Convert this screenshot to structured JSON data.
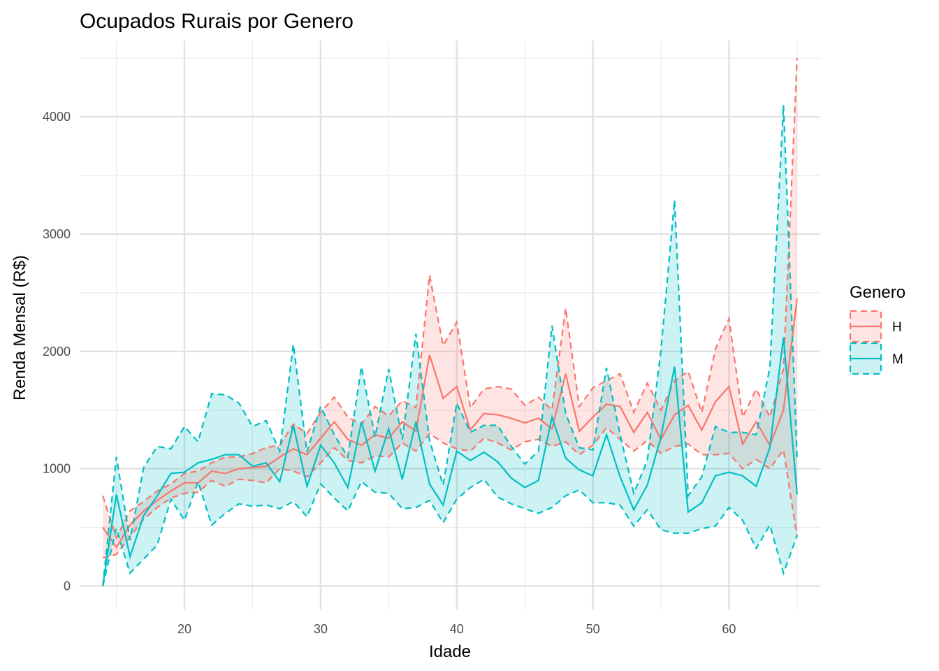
{
  "chart_data": {
    "type": "line",
    "title": "Ocupados Rurais por Genero",
    "xlabel": "Idade",
    "ylabel": "Renda Mensal (R$)",
    "xlim": [
      12.3,
      66.7
    ],
    "ylim": [
      -200,
      4650
    ],
    "x_ticks": [
      20,
      30,
      40,
      50,
      60
    ],
    "x_minor_ticks": [
      15,
      25,
      35,
      45,
      55,
      65
    ],
    "y_ticks": [
      0,
      1000,
      2000,
      3000,
      4000
    ],
    "y_minor_ticks": [
      500,
      1500,
      2500,
      3500,
      4500
    ],
    "grid": true,
    "legend": {
      "title": "Genero",
      "position": "right"
    },
    "x": [
      14,
      15,
      16,
      17,
      18,
      19,
      20,
      21,
      22,
      23,
      24,
      25,
      26,
      27,
      28,
      29,
      30,
      31,
      32,
      33,
      34,
      35,
      36,
      37,
      38,
      39,
      40,
      41,
      42,
      43,
      44,
      45,
      46,
      47,
      48,
      49,
      50,
      51,
      52,
      53,
      54,
      55,
      56,
      57,
      58,
      59,
      60,
      61,
      62,
      63,
      64,
      65
    ],
    "series": [
      {
        "name": "H",
        "color": "#F8766D",
        "fill": "#F8766D",
        "mean": [
          500,
          330,
          520,
          640,
          730,
          810,
          880,
          880,
          980,
          960,
          1000,
          1010,
          1020,
          1100,
          1170,
          1120,
          1260,
          1400,
          1250,
          1200,
          1290,
          1260,
          1400,
          1320,
          1970,
          1600,
          1700,
          1330,
          1470,
          1460,
          1430,
          1390,
          1430,
          1340,
          1810,
          1320,
          1440,
          1550,
          1530,
          1310,
          1480,
          1250,
          1460,
          1540,
          1330,
          1570,
          1700,
          1210,
          1400,
          1200,
          1500,
          2450
        ],
        "upper": [
          770,
          410,
          640,
          720,
          810,
          870,
          960,
          980,
          1050,
          1100,
          1100,
          1130,
          1180,
          1200,
          1380,
          1300,
          1480,
          1610,
          1440,
          1380,
          1530,
          1450,
          1580,
          1520,
          2650,
          2050,
          2250,
          1520,
          1680,
          1700,
          1680,
          1540,
          1610,
          1500,
          2370,
          1530,
          1690,
          1750,
          1810,
          1480,
          1730,
          1500,
          1750,
          1830,
          1480,
          2020,
          2280,
          1440,
          1680,
          1440,
          1850,
          4500
        ],
        "lower": [
          240,
          270,
          420,
          570,
          670,
          750,
          790,
          800,
          900,
          850,
          910,
          900,
          880,
          1000,
          980,
          930,
          1050,
          1180,
          1070,
          1050,
          1110,
          1100,
          1220,
          1150,
          1300,
          1220,
          1170,
          1150,
          1260,
          1220,
          1160,
          1230,
          1250,
          1190,
          1230,
          1120,
          1200,
          1350,
          1250,
          1150,
          1240,
          1130,
          1190,
          1210,
          1120,
          1120,
          1130,
          1000,
          1080,
          1000,
          1160,
          420
        ]
      },
      {
        "name": "M",
        "color": "#00BFC4",
        "fill": "#00BFC4",
        "mean": [
          0,
          780,
          250,
          600,
          770,
          960,
          970,
          1050,
          1080,
          1120,
          1120,
          1020,
          1050,
          890,
          1370,
          850,
          1200,
          1050,
          840,
          1400,
          980,
          1340,
          910,
          1400,
          870,
          690,
          1150,
          1070,
          1140,
          1060,
          920,
          840,
          900,
          1440,
          1090,
          990,
          940,
          1290,
          930,
          650,
          860,
          1270,
          1870,
          630,
          710,
          940,
          970,
          940,
          850,
          1180,
          2120,
          780
        ],
        "upper": [
          0,
          1100,
          390,
          1010,
          1190,
          1170,
          1360,
          1230,
          1640,
          1630,
          1560,
          1360,
          1410,
          1150,
          2060,
          1140,
          1530,
          1290,
          1100,
          1870,
          1270,
          1850,
          1250,
          2150,
          1240,
          860,
          1560,
          1310,
          1370,
          1370,
          1190,
          1040,
          1150,
          2220,
          1470,
          1180,
          1160,
          1860,
          1290,
          790,
          1070,
          2010,
          3290,
          770,
          930,
          1360,
          1310,
          1310,
          1290,
          1860,
          4100,
          1090
        ],
        "lower": [
          0,
          490,
          110,
          230,
          350,
          740,
          560,
          890,
          520,
          620,
          700,
          680,
          690,
          660,
          720,
          590,
          870,
          750,
          640,
          890,
          800,
          790,
          660,
          670,
          730,
          540,
          740,
          840,
          910,
          760,
          700,
          660,
          620,
          670,
          770,
          820,
          710,
          710,
          690,
          510,
          650,
          480,
          450,
          450,
          490,
          510,
          670,
          560,
          320,
          520,
          110,
          430
        ]
      }
    ]
  }
}
